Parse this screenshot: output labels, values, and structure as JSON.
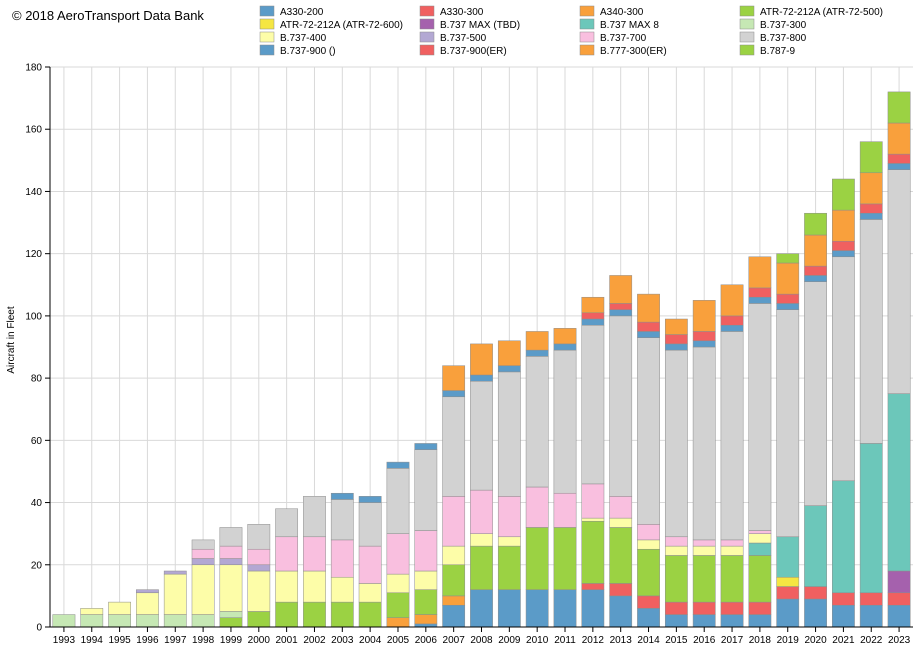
{
  "copyright": "© 2018 AeroTransport Data Bank",
  "chart_data": {
    "type": "bar",
    "stacked": true,
    "ylabel": "Aircraft in Fleet",
    "xlabel": "",
    "ylim": [
      0,
      180
    ],
    "yticks": [
      0,
      20,
      40,
      60,
      80,
      100,
      120,
      140,
      160,
      180
    ],
    "grid": true,
    "legend_position": "top",
    "categories": [
      "1993",
      "1994",
      "1995",
      "1996",
      "1997",
      "1998",
      "1999",
      "2000",
      "2001",
      "2002",
      "2003",
      "2004",
      "2005",
      "2006",
      "2007",
      "2008",
      "2009",
      "2010",
      "2011",
      "2012",
      "2013",
      "2014",
      "2015",
      "2016",
      "2017",
      "2018",
      "2019",
      "2020",
      "2021",
      "2022",
      "2023"
    ],
    "series": [
      {
        "name": "A330-200",
        "color": "#5b9bc8",
        "values": [
          0,
          0,
          0,
          0,
          0,
          0,
          0,
          0,
          0,
          0,
          0,
          0,
          0,
          1,
          7,
          12,
          12,
          12,
          12,
          12,
          10,
          6,
          4,
          4,
          4,
          4,
          9,
          9,
          7,
          7,
          7
        ]
      },
      {
        "name": "A330-300",
        "color": "#f06060",
        "values": [
          0,
          0,
          0,
          0,
          0,
          0,
          0,
          0,
          0,
          0,
          0,
          0,
          0,
          0,
          0,
          0,
          0,
          0,
          0,
          2,
          4,
          4,
          4,
          4,
          4,
          4,
          4,
          4,
          4,
          4,
          4
        ]
      },
      {
        "name": "A340-300",
        "color": "#f9a03c",
        "values": [
          0,
          0,
          0,
          0,
          0,
          0,
          0,
          0,
          0,
          0,
          0,
          0,
          3,
          3,
          3,
          0,
          0,
          0,
          0,
          0,
          0,
          0,
          0,
          0,
          0,
          0,
          0,
          0,
          0,
          0,
          0
        ]
      },
      {
        "name": "ATR-72-212A (ATR-72-500)",
        "color": "#9bd243",
        "values": [
          0,
          0,
          0,
          0,
          0,
          0,
          3,
          5,
          8,
          8,
          8,
          8,
          8,
          8,
          10,
          14,
          14,
          20,
          20,
          20,
          18,
          15,
          15,
          15,
          15,
          15,
          0,
          0,
          0,
          0,
          0
        ]
      },
      {
        "name": "ATR-72-212A (ATR-72-600)",
        "color": "#f5e642",
        "values": [
          0,
          0,
          0,
          0,
          0,
          0,
          0,
          0,
          0,
          0,
          0,
          0,
          0,
          0,
          0,
          0,
          0,
          0,
          0,
          0,
          0,
          0,
          0,
          0,
          0,
          0,
          3,
          0,
          0,
          0,
          0
        ]
      },
      {
        "name": "B.737 MAX (TBD)",
        "color": "#a561ad",
        "values": [
          0,
          0,
          0,
          0,
          0,
          0,
          0,
          0,
          0,
          0,
          0,
          0,
          0,
          0,
          0,
          0,
          0,
          0,
          0,
          0,
          0,
          0,
          0,
          0,
          0,
          0,
          0,
          0,
          0,
          0,
          7
        ]
      },
      {
        "name": "B.737 MAX 8",
        "color": "#6cc7ba",
        "values": [
          0,
          0,
          0,
          0,
          0,
          0,
          0,
          0,
          0,
          0,
          0,
          0,
          0,
          0,
          0,
          0,
          0,
          0,
          0,
          0,
          0,
          0,
          0,
          0,
          0,
          4,
          13,
          26,
          36,
          48,
          57
        ]
      },
      {
        "name": "B.737-300",
        "color": "#c6e8b4",
        "values": [
          4,
          4,
          4,
          4,
          4,
          4,
          2,
          0,
          0,
          0,
          0,
          0,
          0,
          0,
          0,
          0,
          0,
          0,
          0,
          0,
          0,
          0,
          0,
          0,
          0,
          0,
          0,
          0,
          0,
          0,
          0
        ]
      },
      {
        "name": "B.737-400",
        "color": "#fdfda8",
        "values": [
          0,
          2,
          4,
          7,
          13,
          16,
          15,
          13,
          10,
          10,
          8,
          6,
          6,
          6,
          6,
          4,
          3,
          0,
          0,
          1,
          3,
          3,
          3,
          3,
          3,
          3,
          0,
          0,
          0,
          0,
          0
        ]
      },
      {
        "name": "B.737-500",
        "color": "#b3a8d3",
        "values": [
          0,
          0,
          0,
          1,
          1,
          2,
          2,
          2,
          0,
          0,
          0,
          0,
          0,
          0,
          0,
          0,
          0,
          0,
          0,
          0,
          0,
          0,
          0,
          0,
          0,
          0,
          0,
          0,
          0,
          0,
          0
        ]
      },
      {
        "name": "B.737-700",
        "color": "#f9bfdf",
        "values": [
          0,
          0,
          0,
          0,
          0,
          3,
          4,
          5,
          11,
          11,
          12,
          12,
          13,
          13,
          16,
          14,
          13,
          13,
          11,
          11,
          7,
          5,
          3,
          2,
          2,
          1,
          0,
          0,
          0,
          0,
          0
        ]
      },
      {
        "name": "B.737-800",
        "color": "#d2d2d2",
        "values": [
          0,
          0,
          0,
          0,
          0,
          3,
          6,
          8,
          9,
          13,
          13,
          14,
          21,
          26,
          32,
          35,
          40,
          42,
          46,
          51,
          58,
          60,
          60,
          62,
          67,
          73,
          73,
          72,
          72,
          72,
          72
        ]
      },
      {
        "name": "B.737-900 ()",
        "color": "#5b9bc8",
        "values": [
          0,
          0,
          0,
          0,
          0,
          0,
          0,
          0,
          0,
          0,
          2,
          2,
          2,
          2,
          2,
          2,
          2,
          2,
          2,
          2,
          2,
          2,
          2,
          2,
          2,
          2,
          2,
          2,
          2,
          2,
          2
        ]
      },
      {
        "name": "B.737-900(ER)",
        "color": "#f06060",
        "values": [
          0,
          0,
          0,
          0,
          0,
          0,
          0,
          0,
          0,
          0,
          0,
          0,
          0,
          0,
          0,
          0,
          0,
          0,
          0,
          2,
          2,
          3,
          3,
          3,
          3,
          3,
          3,
          3,
          3,
          3,
          3
        ]
      },
      {
        "name": "B.777-300(ER)",
        "color": "#f9a03c",
        "values": [
          0,
          0,
          0,
          0,
          0,
          0,
          0,
          0,
          0,
          0,
          0,
          0,
          0,
          0,
          8,
          10,
          8,
          6,
          5,
          5,
          9,
          9,
          5,
          10,
          10,
          10,
          10,
          10,
          10,
          10,
          10
        ]
      },
      {
        "name": "B.787-9",
        "color": "#9bd243",
        "values": [
          0,
          0,
          0,
          0,
          0,
          0,
          0,
          0,
          0,
          0,
          0,
          0,
          0,
          0,
          0,
          0,
          0,
          0,
          0,
          0,
          0,
          0,
          0,
          0,
          0,
          0,
          3,
          7,
          10,
          10,
          10
        ]
      }
    ]
  }
}
